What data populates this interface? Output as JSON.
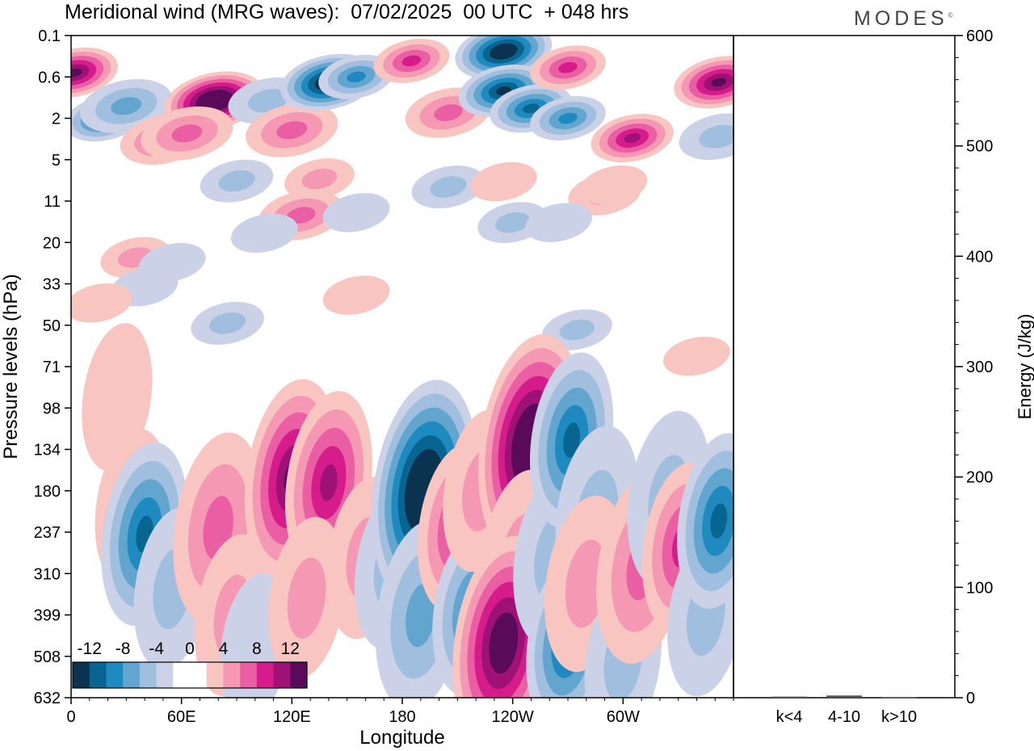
{
  "title": "Meridional wind (MRG waves):  07/02/2025  00 UTC  + 048 hrs",
  "brand": "MODES",
  "brand_mark": "©",
  "colors": {
    "scale": [
      "#0b3350",
      "#086590",
      "#1f8ac0",
      "#62a5cf",
      "#a0bede",
      "#cbd1e6",
      "#ffffff",
      "#ffffff",
      "#f8c5c0",
      "#f598b4",
      "#ea5fa4",
      "#d61c8b",
      "#9e1177",
      "#5a0a5a"
    ]
  },
  "chart_data": [
    {
      "type": "heatmap",
      "title": "Meridional wind (MRG waves):  07/02/2025  00 UTC  + 048 hrs",
      "xlabel": "Longitude",
      "ylabel": "Pressure levels (hPa)",
      "x_ticks": [
        "0",
        "60E",
        "120E",
        "180",
        "120W",
        "60W"
      ],
      "x_range": [
        0,
        360
      ],
      "y_ticks": [
        "0.1",
        "0.6",
        "2",
        "5",
        "11",
        "20",
        "33",
        "50",
        "71",
        "98",
        "134",
        "180",
        "237",
        "310",
        "399",
        "508",
        "632"
      ],
      "colorbar": {
        "labels": [
          "-12",
          "-8",
          "-4",
          "0",
          "4",
          "8",
          "12"
        ],
        "levels": [
          -14,
          -12,
          -10,
          -8,
          -6,
          -4,
          -2,
          0,
          2,
          4,
          6,
          8,
          10,
          12,
          14
        ]
      },
      "features": [
        {
          "lon": 2,
          "lev": 0.5,
          "value": 11
        },
        {
          "lon": 18,
          "lev": 2.0,
          "value": -9
        },
        {
          "lon": 30,
          "lev": 1.4,
          "value": -6
        },
        {
          "lon": 50,
          "lev": 3.2,
          "value": 5
        },
        {
          "lon": 78,
          "lev": 1.2,
          "value": 15
        },
        {
          "lon": 63,
          "lev": 2.8,
          "value": 6
        },
        {
          "lon": 107,
          "lev": 1.2,
          "value": -4
        },
        {
          "lon": 120,
          "lev": 2.6,
          "value": 6
        },
        {
          "lon": 140,
          "lev": 0.7,
          "value": -14
        },
        {
          "lon": 155,
          "lev": 0.6,
          "value": -8
        },
        {
          "lon": 185,
          "lev": 0.3,
          "value": 8
        },
        {
          "lon": 205,
          "lev": 1.7,
          "value": 5
        },
        {
          "lon": 235,
          "lev": 0.2,
          "value": -14
        },
        {
          "lon": 235,
          "lev": 0.9,
          "value": -12
        },
        {
          "lon": 250,
          "lev": 1.5,
          "value": -10
        },
        {
          "lon": 270,
          "lev": 2.0,
          "value": -8
        },
        {
          "lon": 270,
          "lev": 0.4,
          "value": 8
        },
        {
          "lon": 305,
          "lev": 3.1,
          "value": 10
        },
        {
          "lon": 352,
          "lev": 0.7,
          "value": 12
        },
        {
          "lon": 352,
          "lev": 3.0,
          "value": -4
        },
        {
          "lon": 90,
          "lev": 7.5,
          "value": -3
        },
        {
          "lon": 135,
          "lev": 7.2,
          "value": 2.5
        },
        {
          "lon": 205,
          "lev": 8.4,
          "value": -3
        },
        {
          "lon": 235,
          "lev": 7.6,
          "value": 2
        },
        {
          "lon": 290,
          "lev": 9.6,
          "value": 3
        },
        {
          "lon": 295,
          "lev": 8.1,
          "value": 2
        },
        {
          "lon": 125,
          "lev": 13.5,
          "value": 5
        },
        {
          "lon": 155,
          "lev": 13.0,
          "value": -2
        },
        {
          "lon": 105,
          "lev": 17.5,
          "value": -2
        },
        {
          "lon": 240,
          "lev": 15.0,
          "value": -2.5
        },
        {
          "lon": 265,
          "lev": 15.0,
          "value": -2
        },
        {
          "lon": 35,
          "lev": 24.0,
          "value": 2.5
        },
        {
          "lon": 55,
          "lev": 25.5,
          "value": -2
        },
        {
          "lon": 40,
          "lev": 34.0,
          "value": -2
        },
        {
          "lon": 15,
          "lev": 40.0,
          "value": 2
        },
        {
          "lon": 85,
          "lev": 49.0,
          "value": -3
        },
        {
          "lon": 155,
          "lev": 37.0,
          "value": 2
        },
        {
          "lon": 275,
          "lev": 52.0,
          "value": -2.5
        },
        {
          "lon": 340,
          "lev": 65.0,
          "value": 2
        },
        {
          "lon": 25,
          "lev": 90.0,
          "value": 2
        },
        {
          "lon": 33,
          "lev": 200.0,
          "value": 2.5
        },
        {
          "lon": 40,
          "lev": 240.0,
          "value": -10
        },
        {
          "lon": 55,
          "lev": 340.0,
          "value": -3
        },
        {
          "lon": 80,
          "lev": 230.0,
          "value": 5
        },
        {
          "lon": 88,
          "lev": 400.0,
          "value": 3
        },
        {
          "lon": 100,
          "lev": 480.0,
          "value": -2
        },
        {
          "lon": 120,
          "lev": 165.0,
          "value": 12
        },
        {
          "lon": 140,
          "lev": 170.0,
          "value": 10
        },
        {
          "lon": 128,
          "lev": 360.0,
          "value": 3
        },
        {
          "lon": 160,
          "lev": 280.0,
          "value": 3
        },
        {
          "lon": 175,
          "lev": 300.0,
          "value": -3
        },
        {
          "lon": 192,
          "lev": 180.0,
          "value": -15
        },
        {
          "lon": 190,
          "lev": 400.0,
          "value": -5
        },
        {
          "lon": 210,
          "lev": 230.0,
          "value": 8
        },
        {
          "lon": 218,
          "lev": 390.0,
          "value": -8
        },
        {
          "lon": 223,
          "lev": 180.0,
          "value": 3
        },
        {
          "lon": 250,
          "lev": 130.0,
          "value": 15
        },
        {
          "lon": 245,
          "lev": 280.0,
          "value": 4
        },
        {
          "lon": 235,
          "lev": 470.0,
          "value": 14
        },
        {
          "lon": 263,
          "lev": 280.0,
          "value": -4
        },
        {
          "lon": 272,
          "lev": 125.0,
          "value": -9
        },
        {
          "lon": 286,
          "lev": 210.0,
          "value": -4
        },
        {
          "lon": 270,
          "lev": 470.0,
          "value": -9
        },
        {
          "lon": 280,
          "lev": 330.0,
          "value": 4
        },
        {
          "lon": 300,
          "lev": 520.0,
          "value": -3
        },
        {
          "lon": 310,
          "lev": 300.0,
          "value": 5
        },
        {
          "lon": 325,
          "lev": 190.0,
          "value": -4
        },
        {
          "lon": 332,
          "lev": 260.0,
          "value": 8
        },
        {
          "lon": 345,
          "lev": 400.0,
          "value": -3
        },
        {
          "lon": 352,
          "lev": 220.0,
          "value": -9
        }
      ]
    },
    {
      "type": "bar",
      "ylabel": "Energy (J/kg)",
      "categories": [
        "k<4",
        "4-10",
        "k>10"
      ],
      "values": [
        1,
        2,
        0.5
      ],
      "ylim": [
        0,
        600
      ],
      "y_ticks": [
        "0",
        "100",
        "200",
        "300",
        "400",
        "500",
        "600"
      ]
    }
  ]
}
